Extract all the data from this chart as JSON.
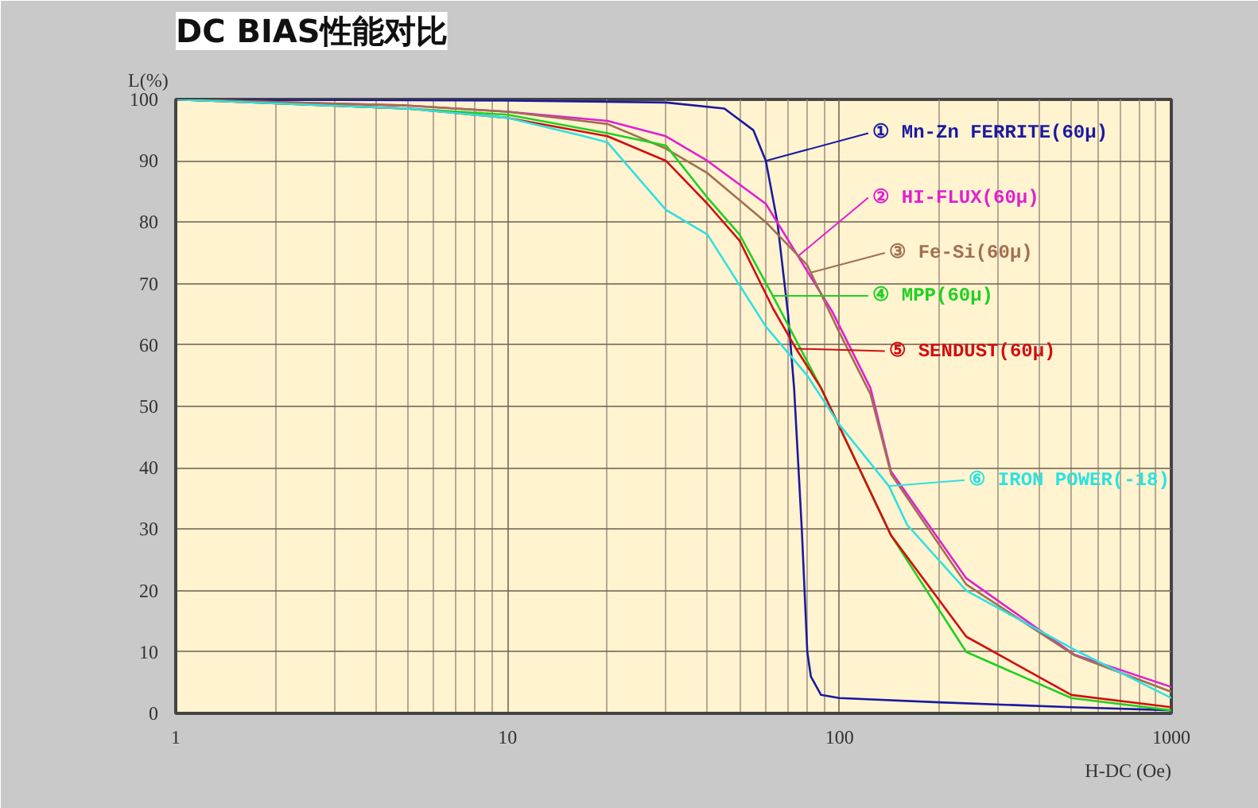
{
  "chart_data": {
    "type": "line",
    "title": "DC BIAS性能对比",
    "xlabel": "H-DC (Oe)",
    "ylabel": "L(%)",
    "log": "x",
    "grid": true,
    "legend": "right",
    "marker": "none",
    "line_style": "solid",
    "xlim": [
      1,
      1000
    ],
    "xticks": [
      1,
      10,
      100,
      1000
    ],
    "ylim": [
      0,
      100
    ],
    "yticks": [
      0,
      10,
      20,
      30,
      40,
      50,
      60,
      70,
      80,
      90,
      100
    ],
    "series": [
      {
        "name": "① Mn-Zn FERRITE(60μ)",
        "color": "#1a1aa0",
        "x": [
          1,
          10,
          30,
          45,
          55,
          60,
          65,
          70,
          73,
          77,
          80,
          82,
          88,
          100,
          200,
          500,
          1000
        ],
        "values": [
          100,
          99.8,
          99.5,
          98.5,
          95,
          90,
          80,
          65,
          53,
          30,
          10,
          6,
          3,
          2.5,
          1.8,
          1,
          0.5
        ]
      },
      {
        "name": "② HI-FLUX(60μ)",
        "color": "#e020d0",
        "x": [
          1,
          5,
          10,
          20,
          30,
          40,
          60,
          80,
          95,
          124,
          143,
          241,
          509,
          1000
        ],
        "values": [
          100,
          99,
          98,
          96.5,
          94,
          90,
          83,
          72,
          65.5,
          53,
          39.4,
          22,
          9.6,
          4.3
        ]
      },
      {
        "name": "③ Fe-Si(60μ)",
        "color": "#a07050",
        "x": [
          1,
          5,
          10,
          20,
          30,
          40,
          60,
          80,
          100,
          124,
          143,
          241,
          509,
          1000
        ],
        "values": [
          100,
          99,
          98,
          96,
          92,
          88,
          80,
          73,
          62,
          52,
          39,
          21,
          9.5,
          3.5
        ]
      },
      {
        "name": "④ MPP(60μ)",
        "color": "#20d020",
        "x": [
          1,
          5,
          10,
          20,
          30,
          40,
          50,
          63,
          88,
          143,
          241,
          500,
          1000
        ],
        "values": [
          100,
          98.5,
          97.5,
          94.5,
          92.5,
          84,
          78,
          68,
          53,
          29,
          10,
          2.5,
          0.5
        ]
      },
      {
        "name": "⑤ SENDUST(60μ)",
        "color": "#d01010",
        "x": [
          1,
          5,
          10,
          20,
          30,
          40,
          50,
          63,
          74,
          88,
          143,
          241,
          500,
          1000
        ],
        "values": [
          100,
          98.5,
          97,
          94,
          90,
          83,
          77,
          66,
          59.4,
          53,
          29,
          12.5,
          3,
          1
        ]
      },
      {
        "name": "⑥ IRON POWER(-18)",
        "color": "#30e0e0",
        "x": [
          1,
          5,
          10,
          17,
          20,
          30,
          40,
          60,
          80,
          100,
          141,
          160,
          241,
          509,
          1000
        ],
        "values": [
          100,
          98.5,
          97,
          94,
          93,
          82,
          78,
          63,
          55,
          47,
          37,
          30.7,
          20,
          10.4,
          2.5
        ]
      }
    ]
  }
}
